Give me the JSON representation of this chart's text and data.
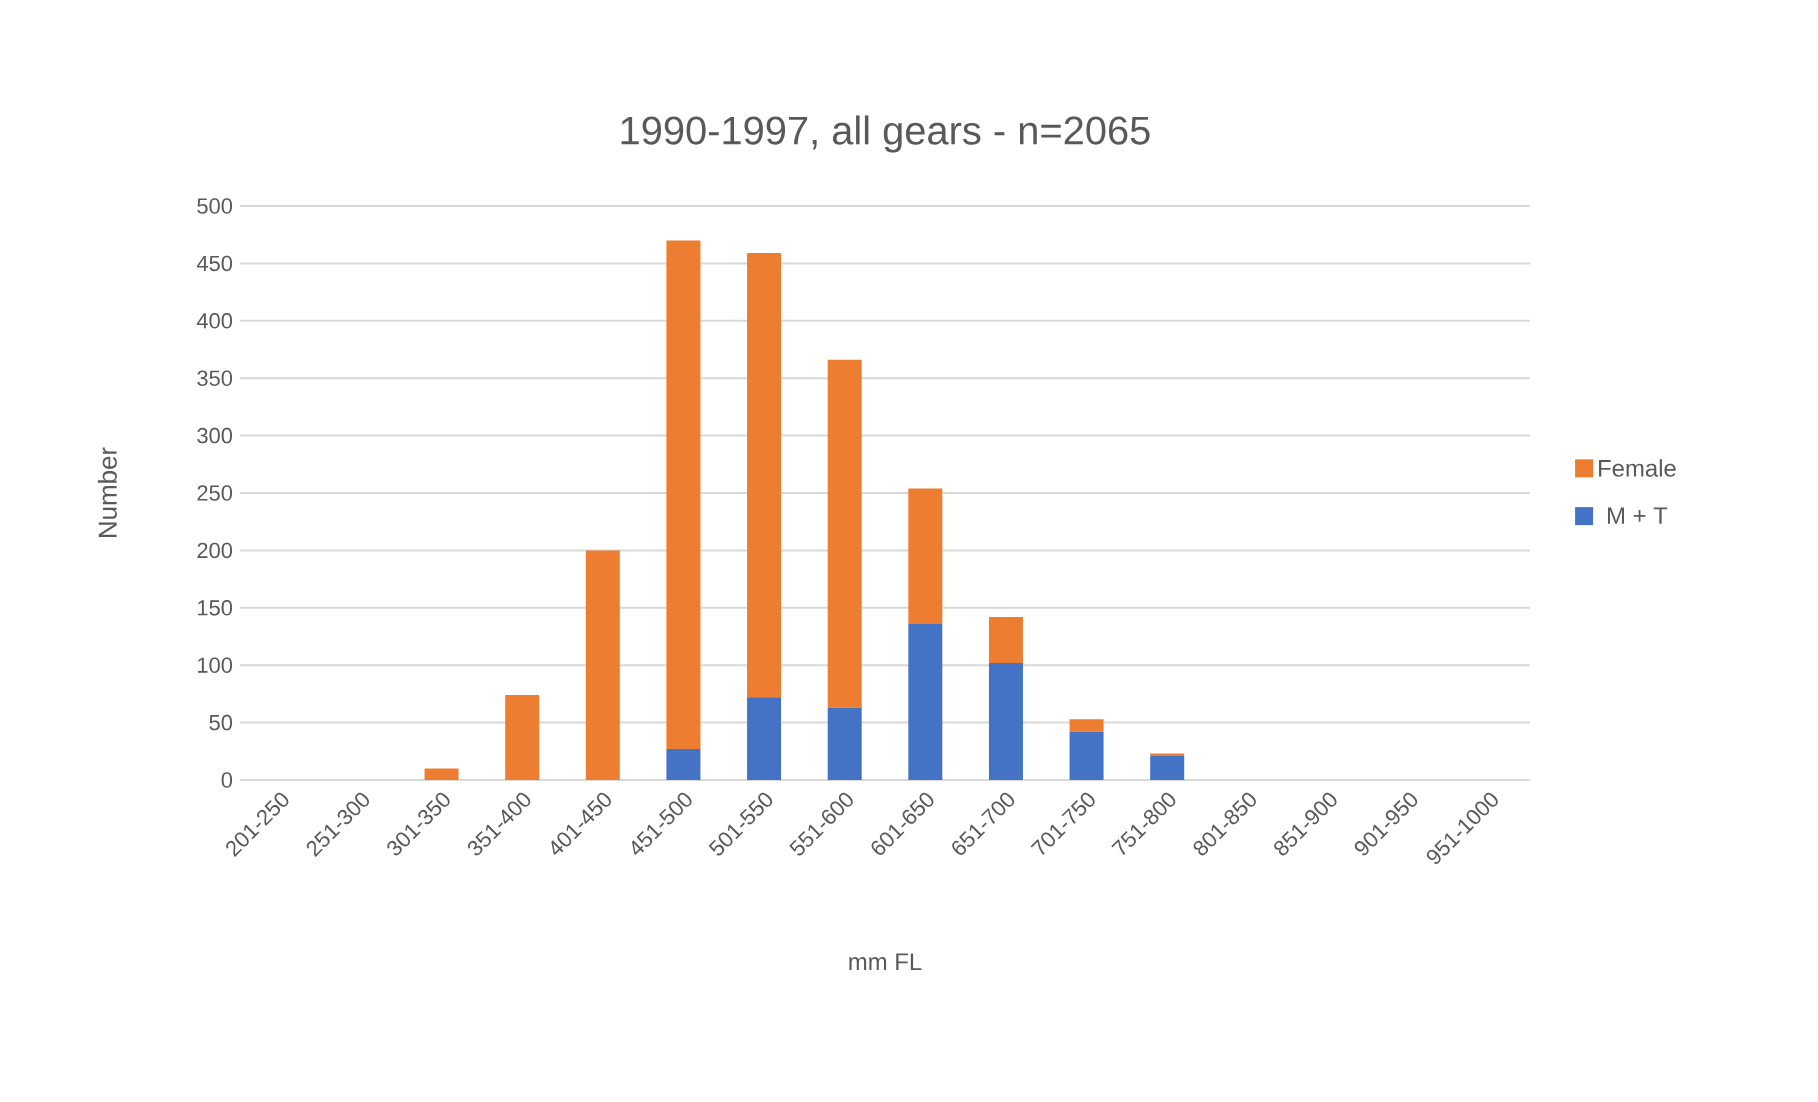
{
  "chart_data": {
    "type": "bar",
    "title": "1990-1997, all gears - n=2065",
    "xlabel": "mm FL",
    "ylabel": "Number",
    "categories": [
      "201-250",
      "251-300",
      "301-350",
      "351-400",
      "401-450",
      "451-500",
      "501-550",
      "551-600",
      "601-650",
      "651-700",
      "701-750",
      "751-800",
      "801-850",
      "851-900",
      "901-950",
      "951-1000"
    ],
    "stacked": true,
    "series": [
      {
        "name": "M + T",
        "color": "#4472c4",
        "values": [
          0,
          0,
          0,
          0,
          0,
          27,
          72,
          63,
          136,
          102,
          42,
          21,
          0,
          0,
          0,
          0
        ]
      },
      {
        "name": "Female",
        "color": "#ed7d31",
        "values": [
          0,
          0,
          10,
          74,
          200,
          443,
          387,
          303,
          118,
          40,
          11,
          2,
          0,
          0,
          0,
          0
        ]
      }
    ],
    "ylim": [
      0,
      500
    ],
    "yticks": [
      0,
      50,
      100,
      150,
      200,
      250,
      300,
      350,
      400,
      450,
      500
    ],
    "grid": "y",
    "legend": "right"
  }
}
